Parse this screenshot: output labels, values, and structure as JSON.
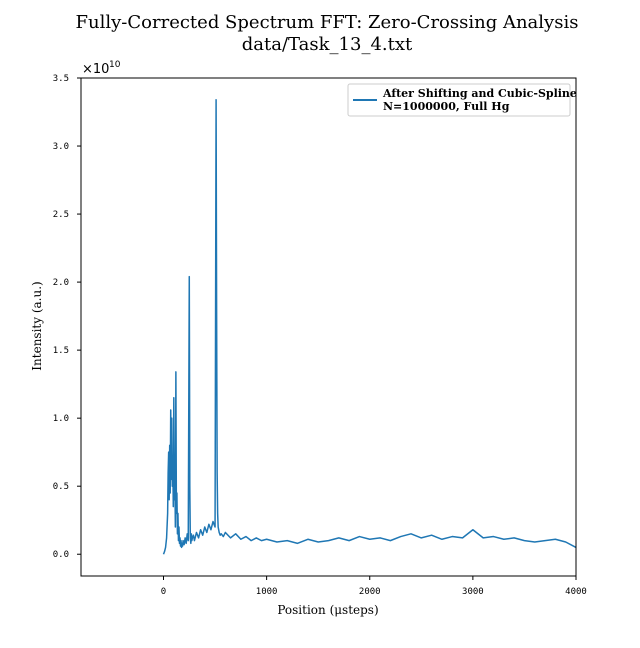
{
  "chart_data": {
    "type": "line",
    "title": "Fully-Corrected Spectrum FFT: Zero-Crossing Analysis",
    "subtitle": "data/Task_13_4.txt",
    "xlabel": "Position (μsteps)",
    "ylabel": "Intensity (a.u.)",
    "y_offset_label": {
      "base": "×10",
      "exponent": "10"
    },
    "xlim": [
      -800,
      4000
    ],
    "ylim": [
      -0.16,
      3.5
    ],
    "y_unit_multiplier": 10000000000.0,
    "xticks": [
      0,
      1000,
      2000,
      3000,
      4000
    ],
    "xtick_labels": [
      "0",
      "1000",
      "2000",
      "3000",
      "4000"
    ],
    "yticks": [
      0.0,
      0.5,
      1.0,
      1.5,
      2.0,
      2.5,
      3.0,
      3.5
    ],
    "ytick_labels": [
      "0.0",
      "0.5",
      "1.0",
      "1.5",
      "2.0",
      "2.5",
      "3.0",
      "3.5"
    ],
    "grid": false,
    "legend_position": "top-right",
    "color": "#1f77b4",
    "series": [
      {
        "name": "After Shifting and Cubic-Spline\nN=1000000, Full Hg",
        "x": [
          0,
          10,
          20,
          30,
          40,
          45,
          50,
          55,
          60,
          65,
          70,
          75,
          80,
          85,
          90,
          95,
          100,
          105,
          110,
          115,
          120,
          125,
          130,
          135,
          140,
          145,
          150,
          155,
          160,
          165,
          170,
          175,
          180,
          185,
          190,
          200,
          210,
          220,
          230,
          240,
          250,
          255,
          260,
          265,
          270,
          275,
          280,
          290,
          300,
          320,
          340,
          360,
          380,
          400,
          420,
          440,
          460,
          480,
          500,
          510,
          515,
          520,
          525,
          530,
          535,
          540,
          550,
          560,
          580,
          600,
          650,
          700,
          750,
          800,
          850,
          900,
          950,
          1000,
          1100,
          1200,
          1300,
          1400,
          1500,
          1600,
          1700,
          1800,
          1900,
          2000,
          2100,
          2200,
          2300,
          2400,
          2500,
          2600,
          2700,
          2800,
          2900,
          3000,
          3100,
          3200,
          3300,
          3400,
          3500,
          3600,
          3700,
          3800,
          3900,
          4000
        ],
        "y": [
          0.0,
          0.02,
          0.05,
          0.12,
          0.3,
          0.6,
          0.75,
          0.4,
          0.8,
          0.45,
          1.06,
          0.55,
          1.0,
          0.5,
          0.7,
          0.35,
          1.15,
          0.4,
          0.6,
          0.2,
          1.34,
          0.3,
          0.45,
          0.15,
          0.3,
          0.1,
          0.2,
          0.08,
          0.12,
          0.06,
          0.1,
          0.05,
          0.08,
          0.06,
          0.1,
          0.07,
          0.12,
          0.08,
          0.15,
          0.1,
          2.04,
          0.5,
          0.12,
          0.08,
          0.15,
          0.1,
          0.12,
          0.14,
          0.1,
          0.16,
          0.12,
          0.18,
          0.14,
          0.2,
          0.16,
          0.22,
          0.18,
          0.24,
          0.2,
          3.34,
          1.8,
          0.6,
          0.3,
          0.2,
          0.18,
          0.16,
          0.14,
          0.15,
          0.13,
          0.16,
          0.12,
          0.15,
          0.11,
          0.13,
          0.1,
          0.12,
          0.1,
          0.11,
          0.09,
          0.1,
          0.08,
          0.11,
          0.09,
          0.1,
          0.12,
          0.1,
          0.13,
          0.11,
          0.12,
          0.1,
          0.13,
          0.15,
          0.12,
          0.14,
          0.11,
          0.13,
          0.12,
          0.18,
          0.12,
          0.13,
          0.11,
          0.12,
          0.1,
          0.09,
          0.1,
          0.11,
          0.09,
          0.05
        ]
      }
    ]
  }
}
